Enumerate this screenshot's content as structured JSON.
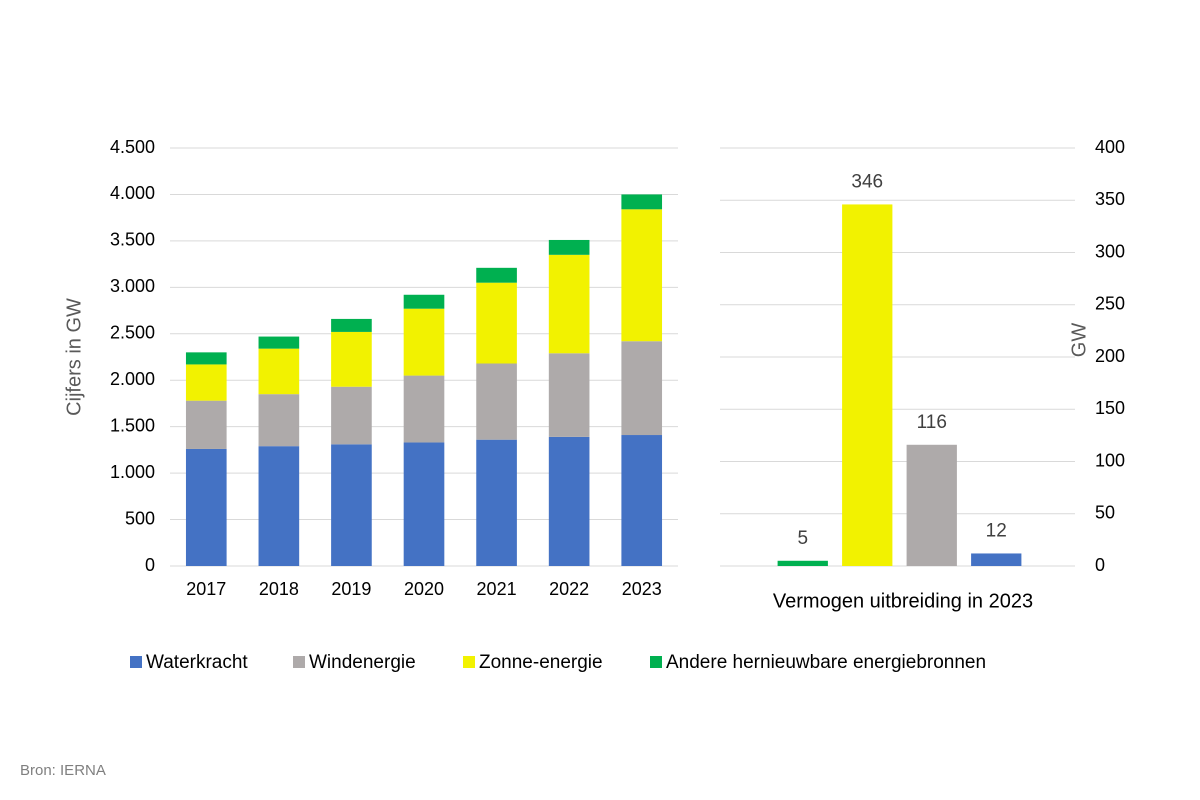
{
  "chart_data": [
    {
      "type": "bar",
      "stacked": true,
      "ylabel": "Cijfers in GW",
      "categories": [
        "2017",
        "2018",
        "2019",
        "2020",
        "2021",
        "2022",
        "2023"
      ],
      "series": [
        {
          "name": "Waterkracht",
          "color": "#4472c4",
          "values": [
            1260,
            1290,
            1310,
            1330,
            1360,
            1390,
            1410
          ]
        },
        {
          "name": "Windenergie",
          "color": "#aeaaaa",
          "values": [
            520,
            560,
            620,
            720,
            820,
            900,
            1010
          ]
        },
        {
          "name": "Zonne-energie",
          "color": "#f2f200",
          "values": [
            390,
            490,
            590,
            720,
            870,
            1060,
            1420
          ]
        },
        {
          "name": "Andere hernieuwbare energiebronnen",
          "color": "#00b050",
          "values": [
            130,
            130,
            140,
            150,
            160,
            160,
            160
          ]
        }
      ],
      "ylim": [
        0,
        4500
      ],
      "yticks": [
        0,
        500,
        {
          "value": 1000,
          "label": "1.000"
        },
        {
          "value": 1500,
          "label": "1.500"
        },
        {
          "value": 2000,
          "label": "2.000"
        },
        {
          "value": 2500,
          "label": "2.500"
        },
        {
          "value": 3000,
          "label": "3.000"
        },
        {
          "value": 3500,
          "label": "3.500"
        },
        {
          "value": 4000,
          "label": "4.000"
        },
        {
          "value": 4500,
          "label": "4.500"
        }
      ],
      "grid": true,
      "legend": "bottom"
    },
    {
      "type": "bar",
      "stacked": false,
      "xlabel": "Vermogen uitbreiding in 2023",
      "y2label": "GW",
      "categories": [
        null,
        null,
        null,
        null
      ],
      "values": [
        5,
        346,
        116,
        12
      ],
      "colors": [
        "#00b050",
        "#f2f200",
        "#aeaaaa",
        "#4472c4"
      ],
      "y2lim": [
        0,
        400
      ],
      "y2ticks": [
        0,
        50,
        100,
        150,
        200,
        250,
        300,
        350,
        400
      ],
      "grid": true
    }
  ],
  "source": "Bron: IERNA"
}
